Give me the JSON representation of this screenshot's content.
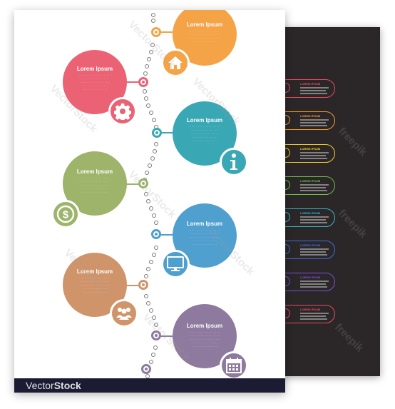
{
  "colors": {
    "orange": "#f5a347",
    "red": "#ea6273",
    "teal": "#3aa7b4",
    "green": "#9db46a",
    "blue": "#4f9fcf",
    "tan": "#d0946a",
    "purple": "#8d7a9e",
    "dark_background": "#2b2729",
    "footer": "#1b1b33"
  },
  "steps": [
    {
      "title": "Lorem Ipsum",
      "color": "orange",
      "icon": "home-icon"
    },
    {
      "title": "Lorem Ipsum",
      "color": "red",
      "icon": "gear-icon"
    },
    {
      "title": "Lorem Ipsum",
      "color": "teal",
      "icon": "info-icon"
    },
    {
      "title": "Lorem Ipsum",
      "color": "green",
      "icon": "dollar-icon"
    },
    {
      "title": "Lorem Ipsum",
      "color": "blue",
      "icon": "monitor-icon"
    },
    {
      "title": "Lorem Ipsum",
      "color": "tan",
      "icon": "people-icon"
    },
    {
      "title": "Lorem Ipsum",
      "color": "purple",
      "icon": "calendar-icon"
    }
  ],
  "dark_preview_rows": [
    {
      "title": "LOREM IPSUM",
      "color": "#e84a5f"
    },
    {
      "title": "LOREM IPSUM",
      "color": "#f59b2b"
    },
    {
      "title": "LOREM IPSUM",
      "color": "#f2cf2c"
    },
    {
      "title": "LOREM IPSUM",
      "color": "#6cc04a"
    },
    {
      "title": "LOREM IPSUM",
      "color": "#36b5c9"
    },
    {
      "title": "LOREM IPSUM",
      "color": "#3b6fd9"
    },
    {
      "title": "LOREM IPSUM",
      "color": "#7b4fd8"
    },
    {
      "title": "LOREM IPSUM",
      "color": "#e84a5f"
    }
  ],
  "watermarks": {
    "vectorstock": "VectorStock",
    "freepik": "freepik"
  },
  "footer": {
    "brand_light": "Vector",
    "brand_bold": "Stock"
  }
}
